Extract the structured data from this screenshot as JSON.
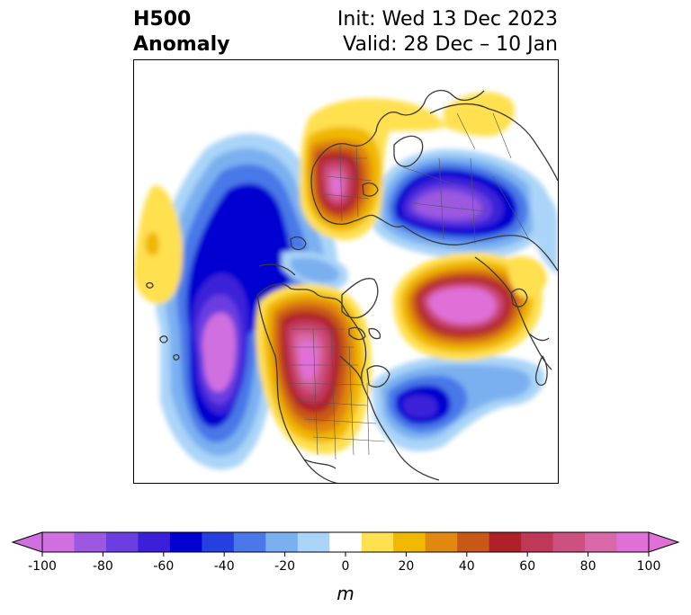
{
  "header": {
    "title_line1": "H500",
    "title_line2": "Anomaly",
    "init_text": "Init: Wed 13 Dec 2023",
    "valid_text": "Valid: 28 Dec – 10 Jan"
  },
  "colorbar": {
    "ticks": [
      "-100",
      "-80",
      "-60",
      "-40",
      "-20",
      "0",
      "20",
      "40",
      "60",
      "80",
      "100"
    ],
    "units": "m",
    "colors": [
      "#d070e0",
      "#9c58e0",
      "#6a3ee0",
      "#3a20d8",
      "#0000d0",
      "#2640e0",
      "#4a78e8",
      "#7ab0f0",
      "#aad4f8",
      "#ffffff",
      "#ffe050",
      "#f0b800",
      "#e08810",
      "#c85818",
      "#b02028",
      "#c03858",
      "#cc5080",
      "#d868a8",
      "#e070d8"
    ],
    "extend_low": "#d070e0",
    "extend_high": "#e070d8"
  },
  "map": {
    "projection": "north-polar-stereographic",
    "anomaly_centers": [
      {
        "sign": "positive",
        "value": 100,
        "lat": 58,
        "lon": -110
      },
      {
        "sign": "positive",
        "value": 100,
        "lat": 62,
        "lon": 35
      },
      {
        "sign": "positive",
        "value": 90,
        "lat": 60,
        "lon": 130
      },
      {
        "sign": "negative",
        "value": -100,
        "lat": 45,
        "lon": -160
      },
      {
        "sign": "negative",
        "value": -90,
        "lat": 55,
        "lon": 95
      },
      {
        "sign": "negative",
        "value": -70,
        "lat": 45,
        "lon": -55
      }
    ]
  }
}
